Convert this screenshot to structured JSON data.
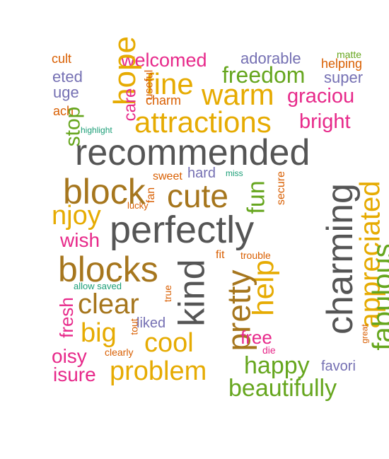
{
  "words": {
    "cult": {
      "text": "cult",
      "color": "#d95f02"
    },
    "welcomed": {
      "text": "welcomed",
      "color": "#e7298a"
    },
    "adorable": {
      "text": "adorable",
      "color": "#7570b3"
    },
    "matte": {
      "text": "matte",
      "color": "#66a61e"
    },
    "helping": {
      "text": "helping",
      "color": "#d95f02"
    },
    "eted": {
      "text": "eted",
      "color": "#7570b3"
    },
    "hope": {
      "text": "hope",
      "color": "#e6ab02"
    },
    "fine": {
      "text": "fine",
      "color": "#e6ab02"
    },
    "freedom": {
      "text": "freedom",
      "color": "#66a61e"
    },
    "super": {
      "text": "super",
      "color": "#7570b3"
    },
    "uge": {
      "text": "uge",
      "color": "#7570b3"
    },
    "useful": {
      "text": "useful",
      "color": "#d95f02"
    },
    "care": {
      "text": "care",
      "color": "#e7298a"
    },
    "charm": {
      "text": "charm",
      "color": "#d95f02"
    },
    "warm": {
      "text": "warm",
      "color": "#e6ab02"
    },
    "gracious": {
      "text": "graciou",
      "color": "#e7298a"
    },
    "ach": {
      "text": "ach",
      "color": "#d95f02"
    },
    "stop": {
      "text": "stop",
      "color": "#66a61e"
    },
    "highlight": {
      "text": "highlight",
      "color": "#1b9e77"
    },
    "attractions": {
      "text": "attractions",
      "color": "#e6ab02"
    },
    "bright": {
      "text": "bright",
      "color": "#e7298a"
    },
    "recommended": {
      "text": "recommended",
      "color": "#555555"
    },
    "block": {
      "text": "block",
      "color": "#a6761d"
    },
    "sweet": {
      "text": "sweet",
      "color": "#d95f02"
    },
    "hard": {
      "text": "hard",
      "color": "#7570b3"
    },
    "miss": {
      "text": "miss",
      "color": "#1b9e77"
    },
    "fan": {
      "text": "fan",
      "color": "#d95f02"
    },
    "lucky": {
      "text": "lucky",
      "color": "#d95f02"
    },
    "cute": {
      "text": "cute",
      "color": "#a6761d"
    },
    "fun": {
      "text": "fun",
      "color": "#66a61e"
    },
    "secure": {
      "text": "secure",
      "color": "#d95f02"
    },
    "charming": {
      "text": "charming",
      "color": "#555555"
    },
    "appreciated": {
      "text": "appreciated",
      "color": "#e6ab02"
    },
    "enjoy": {
      "text": "njoy",
      "color": "#e6ab02"
    },
    "perfectly": {
      "text": "perfectly",
      "color": "#555555"
    },
    "wish": {
      "text": "wish",
      "color": "#e7298a"
    },
    "fit": {
      "text": "fit",
      "color": "#d95f02"
    },
    "trouble": {
      "text": "trouble",
      "color": "#d95f02"
    },
    "blocks": {
      "text": "blocks",
      "color": "#a6761d"
    },
    "allow_saved": {
      "text": "allow saved",
      "color": "#1b9e77"
    },
    "kind": {
      "text": "kind",
      "color": "#555555"
    },
    "help": {
      "text": "help",
      "color": "#e6ab02"
    },
    "fabulous": {
      "text": "fabulous",
      "color": "#66a61e"
    },
    "clear": {
      "text": "clear",
      "color": "#a6761d"
    },
    "true": {
      "text": "true",
      "color": "#d95f02"
    },
    "pretty": {
      "text": "pretty",
      "color": "#a6761d"
    },
    "fresh": {
      "text": "fresh",
      "color": "#e7298a"
    },
    "liked": {
      "text": "liked",
      "color": "#7570b3"
    },
    "tout": {
      "text": "tout",
      "color": "#d95f02"
    },
    "big": {
      "text": "big",
      "color": "#e6ab02"
    },
    "free": {
      "text": "free",
      "color": "#e7298a"
    },
    "great": {
      "text": "great",
      "color": "#d95f02"
    },
    "cool": {
      "text": "cool",
      "color": "#e6ab02"
    },
    "die": {
      "text": "die",
      "color": "#e7298a"
    },
    "noisy": {
      "text": "oisy",
      "color": "#e7298a"
    },
    "clearly": {
      "text": "clearly",
      "color": "#d95f02"
    },
    "happy": {
      "text": "happy",
      "color": "#66a61e"
    },
    "favorite": {
      "text": "favori",
      "color": "#7570b3"
    },
    "problem": {
      "text": "problem",
      "color": "#e6ab02"
    },
    "pleasure": {
      "text": "isure",
      "color": "#e7298a"
    },
    "beautifully": {
      "text": "beautifully",
      "color": "#66a61e"
    }
  }
}
